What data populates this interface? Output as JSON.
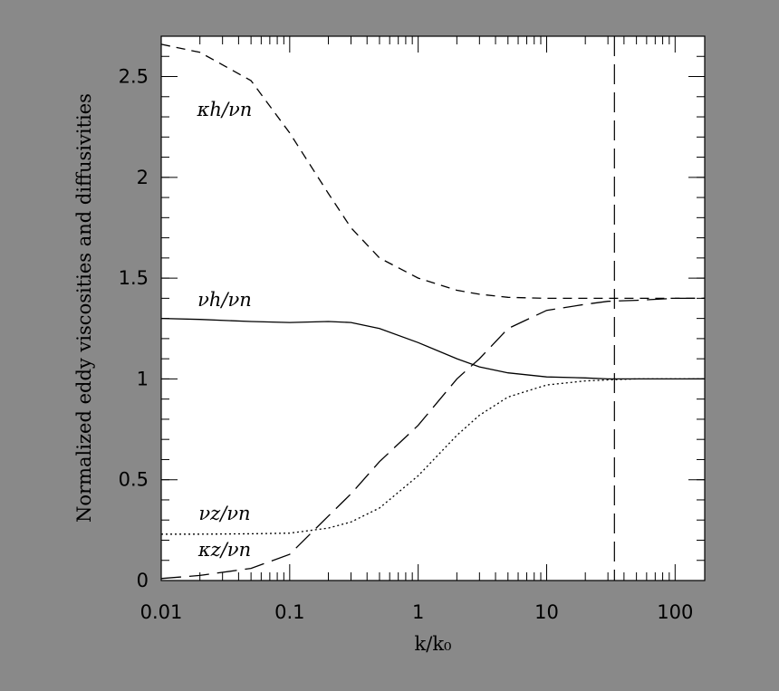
{
  "chart_data": {
    "type": "line",
    "xlabel": "k/k₀",
    "ylabel": "Normalized eddy viscosities and diffusivities",
    "x": [
      0.01,
      0.02,
      0.05,
      0.1,
      0.2,
      0.3,
      0.5,
      1,
      2,
      3,
      5,
      10,
      20,
      30,
      50,
      100,
      170
    ],
    "series": [
      {
        "name": "κh/νn",
        "color": "#000000",
        "dash": "10 7",
        "values": [
          2.66,
          2.62,
          2.48,
          2.22,
          1.92,
          1.75,
          1.6,
          1.5,
          1.44,
          1.42,
          1.405,
          1.4,
          1.4,
          1.4,
          1.4,
          1.4,
          1.4
        ]
      },
      {
        "name": "νh/νn",
        "color": "#000000",
        "dash": "",
        "values": [
          1.3,
          1.295,
          1.285,
          1.28,
          1.285,
          1.28,
          1.25,
          1.18,
          1.1,
          1.06,
          1.03,
          1.01,
          1.005,
          1.0,
          1.0,
          1.0,
          1.0
        ]
      },
      {
        "name": "νz/νn",
        "color": "#000000",
        "dash": "2 3",
        "values": [
          0.23,
          0.23,
          0.232,
          0.235,
          0.26,
          0.29,
          0.36,
          0.52,
          0.72,
          0.82,
          0.91,
          0.97,
          0.99,
          0.995,
          1.0,
          1.0,
          1.0
        ]
      },
      {
        "name": "κz/νn",
        "color": "#000000",
        "dash": "22 9",
        "values": [
          0.01,
          0.025,
          0.06,
          0.13,
          0.32,
          0.43,
          0.59,
          0.77,
          1.0,
          1.1,
          1.25,
          1.34,
          1.37,
          1.385,
          1.39,
          1.4,
          1.4
        ]
      }
    ],
    "vline": 33.7,
    "xscale": "log",
    "xlim": [
      0.01,
      170
    ],
    "ylim": [
      0,
      2.7
    ],
    "xticks": [
      0.01,
      0.1,
      1,
      10,
      100
    ],
    "yticks": [
      0,
      0.5,
      1,
      1.5,
      2,
      2.5
    ]
  }
}
